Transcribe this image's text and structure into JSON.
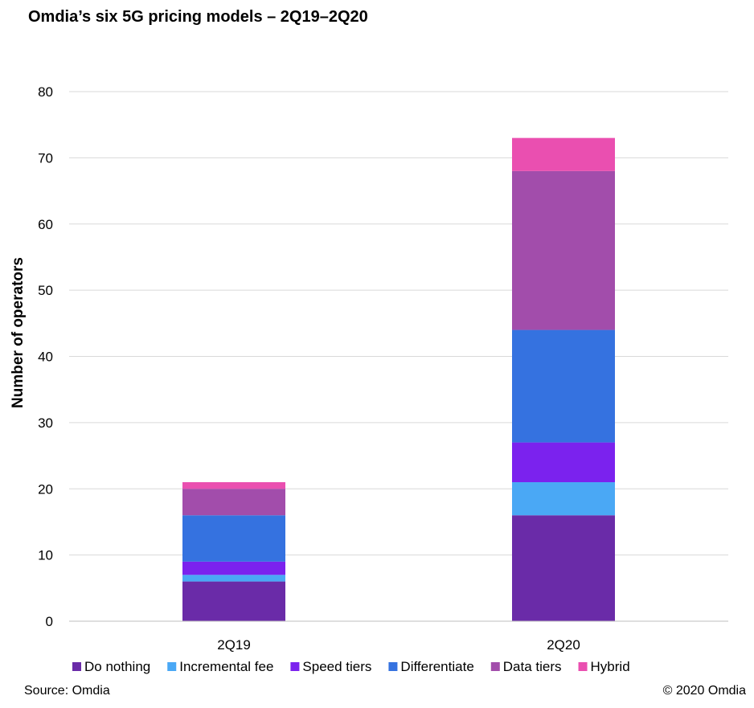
{
  "title": "Omdia’s six 5G pricing models – 2Q19–2Q20",
  "source": "Source: Omdia",
  "copyright": "© 2020 Omdia",
  "chart_data": {
    "type": "bar",
    "stacked": true,
    "title": "Omdia’s six 5G pricing models – 2Q19–2Q20",
    "xlabel": "",
    "ylabel": "Number of operators",
    "ylim": [
      0,
      80
    ],
    "yticks": [
      0,
      10,
      20,
      30,
      40,
      50,
      60,
      70,
      80
    ],
    "grid": true,
    "legend_position": "bottom",
    "categories": [
      "2Q19",
      "2Q20"
    ],
    "series": [
      {
        "name": "Do nothing",
        "color": "#6a2ba8",
        "values": [
          6,
          16
        ]
      },
      {
        "name": "Incremental fee",
        "color": "#4aa8f5",
        "values": [
          1,
          5
        ]
      },
      {
        "name": "Speed tiers",
        "color": "#7b22ee",
        "values": [
          2,
          6
        ]
      },
      {
        "name": "Differentiate",
        "color": "#3572e0",
        "values": [
          7,
          17
        ]
      },
      {
        "name": "Data tiers",
        "color": "#a24dab",
        "values": [
          4,
          24
        ]
      },
      {
        "name": "Hybrid",
        "color": "#ea4fb0",
        "values": [
          1,
          5
        ]
      }
    ]
  }
}
